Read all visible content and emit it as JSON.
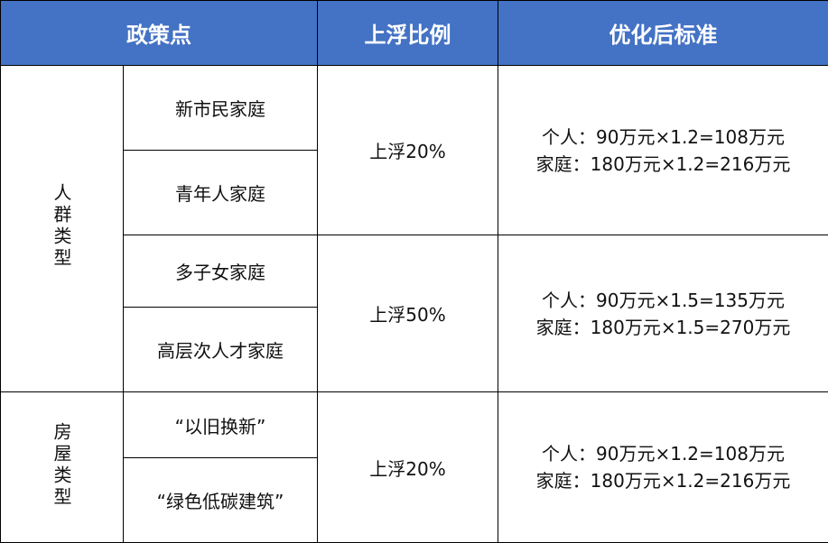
{
  "header": {
    "policy": "政策点",
    "ratio": "上浮比例",
    "standard": "优化后标准"
  },
  "groups": [
    {
      "category": "人群类型",
      "blocks": [
        {
          "items": [
            "新市民家庭",
            "青年人家庭"
          ],
          "ratio": "上浮20%",
          "individual": "个人：90万元×1.2=108万元",
          "family": "家庭：180万元×1.2=216万元"
        },
        {
          "items": [
            "多子女家庭",
            "高层次人才家庭"
          ],
          "ratio": "上浮50%",
          "individual": "个人：90万元×1.5=135万元",
          "family": "家庭：180万元×1.5=270万元"
        }
      ]
    },
    {
      "category": "房屋类型",
      "blocks": [
        {
          "items": [
            "“以旧换新”",
            "“绿色低碳建筑”"
          ],
          "ratio": "上浮20%",
          "individual": "个人：90万元×1.2=108万元",
          "family": "家庭：180万元×1.2=216万元"
        }
      ]
    }
  ],
  "colors": {
    "header_bg": "#4472C4",
    "header_text": "#FFFFFF"
  }
}
